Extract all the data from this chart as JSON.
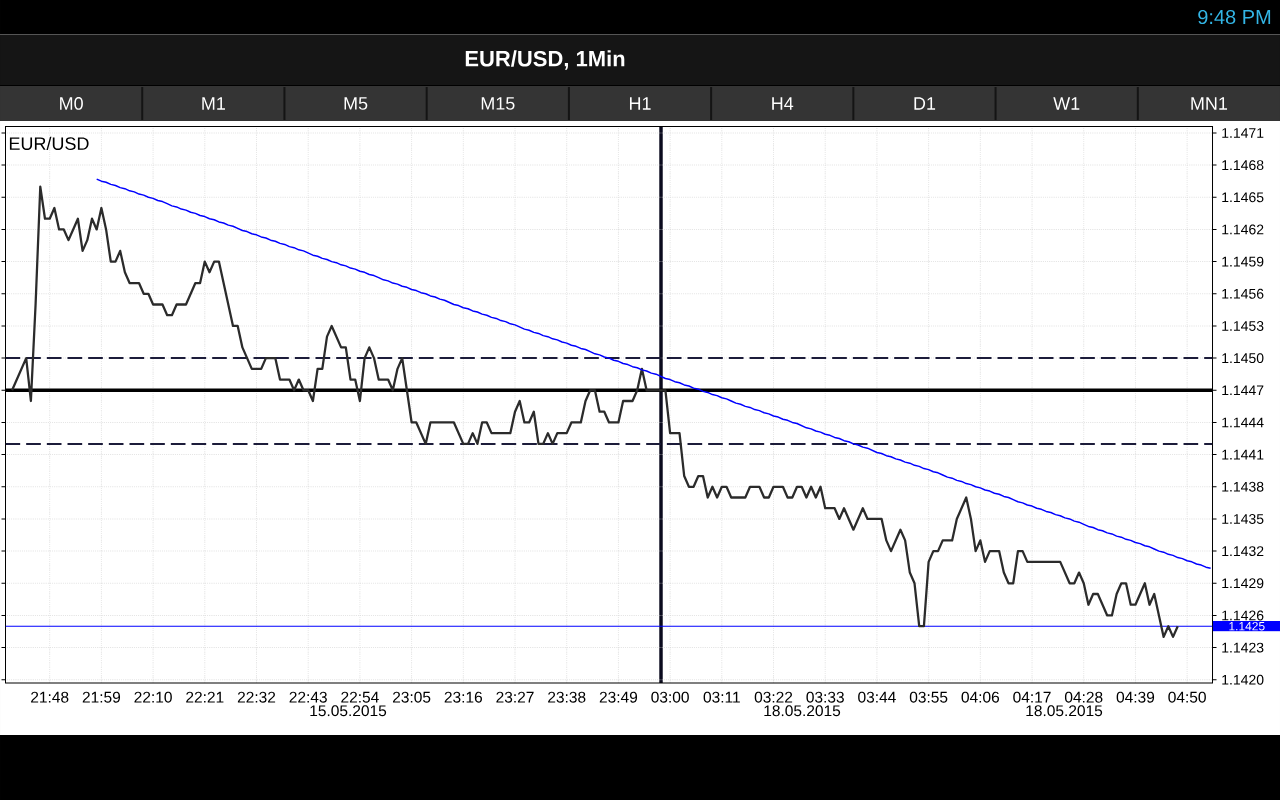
{
  "chart_data": {
    "type": "line",
    "title": "EUR/USD, 1Min",
    "annotations": [
      "EUR/USD",
      "M0",
      "M1",
      "M5",
      "M15",
      "H1",
      "H4",
      "D1",
      "W1",
      "MN1",
      "9:48 PM",
      "15.05.2015",
      "18.05.2015",
      "18.05.2015"
    ],
    "categories": [
      null,
      null,
      null,
      null,
      null,
      null,
      null,
      null,
      null,
      "21:48",
      null,
      null,
      null,
      null,
      null,
      null,
      null,
      null,
      null,
      null,
      "21:59",
      null,
      null,
      null,
      null,
      null,
      null,
      null,
      null,
      null,
      null,
      "22:10",
      null,
      null,
      null,
      null,
      null,
      null,
      null,
      null,
      null,
      null,
      "22:21",
      null,
      null,
      null,
      null,
      null,
      null,
      null,
      null,
      null,
      null,
      "22:32",
      null,
      null,
      null,
      null,
      null,
      null,
      null,
      null,
      null,
      null,
      "22:43",
      null,
      null,
      null,
      null,
      null,
      null,
      null,
      null,
      null,
      null,
      "22:54",
      null,
      null,
      null,
      null,
      null,
      null,
      null,
      null,
      null,
      null,
      "23:05",
      null,
      null,
      null,
      null,
      null,
      null,
      null,
      null,
      null,
      null,
      "23:16",
      null,
      null,
      null,
      null,
      null,
      null,
      null,
      null,
      null,
      null,
      "23:27",
      null,
      null,
      null,
      null,
      null,
      null,
      null,
      null,
      null,
      null,
      "23:38",
      null,
      null,
      null,
      null,
      null,
      null,
      null,
      null,
      null,
      null,
      "23:49",
      null,
      null,
      null,
      null,
      null,
      null,
      null,
      null,
      null,
      null,
      "03:00",
      null,
      null,
      null,
      null,
      null,
      null,
      null,
      null,
      null,
      null,
      "03:11",
      null,
      null,
      null,
      null,
      null,
      null,
      null,
      null,
      null,
      null,
      "03:22",
      null,
      null,
      null,
      null,
      null,
      null,
      null,
      null,
      null,
      null,
      "03:33",
      null,
      null,
      null,
      null,
      null,
      null,
      null,
      null,
      null,
      null,
      "03:44",
      null,
      null,
      null,
      null,
      null,
      null,
      null,
      null,
      null,
      null,
      "03:55",
      null,
      null,
      null,
      null,
      null,
      null,
      null,
      null,
      null,
      null,
      "04:06",
      null,
      null,
      null,
      null,
      null,
      null,
      null,
      null,
      null,
      null,
      "04:17",
      null,
      null,
      null,
      null,
      null,
      null,
      null,
      null,
      null,
      null,
      "04:28",
      null,
      null,
      null,
      null,
      null,
      null,
      null,
      null,
      null,
      null,
      "04:39",
      null,
      null,
      null,
      null,
      null,
      null,
      null,
      null,
      null,
      null,
      "04:50",
      null,
      null,
      null,
      null,
      null
    ],
    "series": [
      {
        "color": "#2b2b2b",
        "values": [
          null,
          1.1447,
          1.1448,
          1.1449,
          1.145,
          1.1446,
          1.1455,
          1.1466,
          1.1463,
          1.1463,
          1.1464,
          1.1462,
          1.1462,
          1.1461,
          1.1462,
          1.1463,
          1.146,
          1.1461,
          1.1463,
          1.1462,
          1.1464,
          1.1462,
          1.1459,
          1.1459,
          1.146,
          1.1458,
          1.1457,
          1.1457,
          1.1457,
          1.1456,
          1.1456,
          1.1455,
          1.1455,
          1.1455,
          1.1454,
          1.1454,
          1.1455,
          1.1455,
          1.1455,
          1.1456,
          1.1457,
          1.1457,
          1.1459,
          1.1458,
          1.1459,
          1.1459,
          1.1457,
          1.1455,
          1.1453,
          1.1453,
          1.1451,
          1.145,
          1.1449,
          1.1449,
          1.1449,
          1.145,
          1.145,
          1.145,
          1.1448,
          1.1448,
          1.1448,
          1.1447,
          1.1448,
          1.1447,
          1.1447,
          1.1446,
          1.1449,
          1.1449,
          1.1452,
          1.1453,
          1.1452,
          1.1451,
          1.1451,
          1.1448,
          1.1448,
          1.1446,
          1.145,
          1.1451,
          1.145,
          1.1448,
          1.1448,
          1.1448,
          1.1447,
          1.1449,
          1.145,
          1.1447,
          1.1444,
          1.1444,
          1.1443,
          1.1442,
          1.1444,
          1.1444,
          1.1444,
          1.1444,
          1.1444,
          1.1444,
          1.1443,
          1.1442,
          1.1442,
          1.1443,
          1.1442,
          1.1444,
          1.1444,
          1.1443,
          1.1443,
          1.1443,
          1.1443,
          1.1443,
          1.1445,
          1.1446,
          1.1444,
          1.1444,
          1.1445,
          1.1442,
          1.1442,
          1.1443,
          1.1442,
          1.1443,
          1.1443,
          1.1443,
          1.1444,
          1.1444,
          1.1444,
          1.1446,
          1.1447,
          1.1447,
          1.1445,
          1.1445,
          1.1444,
          1.1444,
          1.1444,
          1.1446,
          1.1446,
          1.1446,
          1.1447,
          1.1449,
          1.1447,
          1.1447,
          1.1447,
          1.1447,
          1.1447,
          1.1443,
          1.1443,
          1.1443,
          1.1439,
          1.1438,
          1.1438,
          1.1439,
          1.1439,
          1.1437,
          1.1438,
          1.1437,
          1.1438,
          1.1438,
          1.1437,
          1.1437,
          1.1437,
          1.1437,
          1.1438,
          1.1438,
          1.1438,
          1.1437,
          1.1437,
          1.1438,
          1.1438,
          1.1438,
          1.1437,
          1.1437,
          1.1438,
          1.1438,
          1.1437,
          1.1438,
          1.1437,
          1.1438,
          1.1436,
          1.1436,
          1.1436,
          1.1435,
          1.1436,
          1.1435,
          1.1434,
          1.1435,
          1.1436,
          1.1435,
          1.1435,
          1.1435,
          1.1435,
          1.1433,
          1.1432,
          1.1433,
          1.1434,
          1.1433,
          1.143,
          1.1429,
          1.1425,
          1.1425,
          1.1431,
          1.1432,
          1.1432,
          1.1433,
          1.1433,
          1.1433,
          1.1435,
          1.1436,
          1.1437,
          1.1435,
          1.1432,
          1.1433,
          1.1431,
          1.1432,
          1.1432,
          1.1432,
          1.143,
          1.1429,
          1.1429,
          1.1432,
          1.1432,
          1.1431,
          1.1431,
          1.1431,
          1.1431,
          1.1431,
          1.1431,
          1.1431,
          1.1431,
          1.143,
          1.1429,
          1.1429,
          1.143,
          1.1429,
          1.1427,
          1.1428,
          1.1428,
          1.1427,
          1.1426,
          1.1426,
          1.1428,
          1.1429,
          1.1429,
          1.1427,
          1.1427,
          1.1428,
          1.1429,
          1.1427,
          1.1428,
          1.1426,
          1.1424,
          1.1425,
          1.1424,
          1.1425,
          null,
          null,
          null,
          null,
          null,
          null,
          null
        ]
      },
      {
        "color": "#0000ff",
        "values": [
          null,
          null,
          null,
          null,
          null,
          null,
          null,
          null,
          null,
          null,
          null,
          null,
          null,
          null,
          null,
          null,
          null,
          null,
          null,
          1.14667,
          1.14665,
          1.14664,
          1.14662,
          1.14661,
          1.14659,
          1.14658,
          1.14656,
          1.14655,
          1.14653,
          1.14652,
          1.1465,
          1.14649,
          1.14647,
          1.14646,
          1.14644,
          1.14642,
          1.14641,
          1.14639,
          1.14638,
          1.14636,
          1.14635,
          1.14633,
          1.14632,
          1.1463,
          1.14629,
          1.14627,
          1.14626,
          1.14624,
          1.14623,
          1.14621,
          1.14619,
          1.14618,
          1.14616,
          1.14615,
          1.14613,
          1.14612,
          1.1461,
          1.14609,
          1.14607,
          1.14606,
          1.14604,
          1.14603,
          1.14601,
          1.146,
          1.14598,
          1.14596,
          1.14595,
          1.14593,
          1.14592,
          1.1459,
          1.14589,
          1.14587,
          1.14586,
          1.14584,
          1.14583,
          1.14581,
          1.1458,
          1.14578,
          1.14577,
          1.14575,
          1.14573,
          1.14572,
          1.1457,
          1.14569,
          1.14567,
          1.14566,
          1.14564,
          1.14563,
          1.14561,
          1.1456,
          1.14558,
          1.14557,
          1.14555,
          1.14554,
          1.14552,
          1.1455,
          1.14549,
          1.14547,
          1.14546,
          1.14544,
          1.14543,
          1.14541,
          1.1454,
          1.14538,
          1.14537,
          1.14535,
          1.14534,
          1.14532,
          1.14531,
          1.14529,
          1.14527,
          1.14526,
          1.14524,
          1.14523,
          1.14521,
          1.1452,
          1.14518,
          1.14517,
          1.14515,
          1.14514,
          1.14512,
          1.14511,
          1.14509,
          1.14508,
          1.14506,
          1.14504,
          1.14503,
          1.14501,
          1.145,
          1.14498,
          1.14497,
          1.14495,
          1.14494,
          1.14492,
          1.14491,
          1.14489,
          1.14488,
          1.14486,
          1.14485,
          1.14483,
          1.14481,
          1.1448,
          1.14478,
          1.14477,
          1.14475,
          1.14474,
          1.14472,
          1.14471,
          1.14469,
          1.14468,
          1.14466,
          1.14465,
          1.14463,
          1.14462,
          1.1446,
          1.14458,
          1.14457,
          1.14455,
          1.14454,
          1.14452,
          1.14451,
          1.14449,
          1.14448,
          1.14446,
          1.14445,
          1.14443,
          1.14442,
          1.1444,
          1.14439,
          1.14437,
          1.14435,
          1.14434,
          1.14432,
          1.14431,
          1.14429,
          1.14428,
          1.14426,
          1.14425,
          1.14423,
          1.14422,
          1.1442,
          1.14419,
          1.14417,
          1.14416,
          1.14414,
          1.14412,
          1.14411,
          1.14409,
          1.14408,
          1.14406,
          1.14405,
          1.14403,
          1.14402,
          1.144,
          1.14399,
          1.14397,
          1.14396,
          1.14394,
          1.14393,
          1.14391,
          1.14389,
          1.14388,
          1.14386,
          1.14385,
          1.14383,
          1.14382,
          1.1438,
          1.14379,
          1.14377,
          1.14376,
          1.14374,
          1.14373,
          1.14371,
          1.1437,
          1.14368,
          1.14366,
          1.14365,
          1.14363,
          1.14362,
          1.1436,
          1.14359,
          1.14357,
          1.14356,
          1.14354,
          1.14353,
          1.14351,
          1.1435,
          1.14348,
          1.14347,
          1.14345,
          1.14343,
          1.14342,
          1.1434,
          1.14339,
          1.14337,
          1.14336,
          1.14334,
          1.14333,
          1.14331,
          1.1433,
          1.14328,
          1.14327,
          1.14325,
          1.14324,
          1.14322,
          1.1432,
          1.14319,
          1.14317,
          1.14316,
          1.14314,
          1.14313,
          1.14311,
          1.1431,
          1.14308,
          1.14307,
          1.14305,
          1.14304
        ]
      }
    ],
    "ylim": [
      1.14197,
      1.14716
    ],
    "yticks": [
      {
        "value": 1.142,
        "label": "1.1420"
      },
      1.1423,
      1.1426,
      1.1429,
      1.1432,
      1.1435,
      1.1438,
      1.1441,
      1.1444,
      1.1447,
      {
        "value": 1.145,
        "label": "1.1450"
      },
      1.1453,
      1.1456,
      1.1459,
      1.1462,
      1.1465,
      1.1468,
      1.1471
    ],
    "ref_lines": [
      {
        "axis": "y",
        "value": 1.145,
        "color": "#1c1c3a",
        "line_style": "dashed"
      },
      {
        "axis": "y",
        "value": 1.1447,
        "color": "#000000"
      },
      {
        "axis": "y",
        "value": 1.1442,
        "color": "#1c1c3a",
        "line_style": "dashed"
      },
      {
        "axis": "y",
        "value": 1.1425,
        "label": "1.1425",
        "color": "#0000ff"
      }
    ],
    "grid": true,
    "marker": "none"
  }
}
